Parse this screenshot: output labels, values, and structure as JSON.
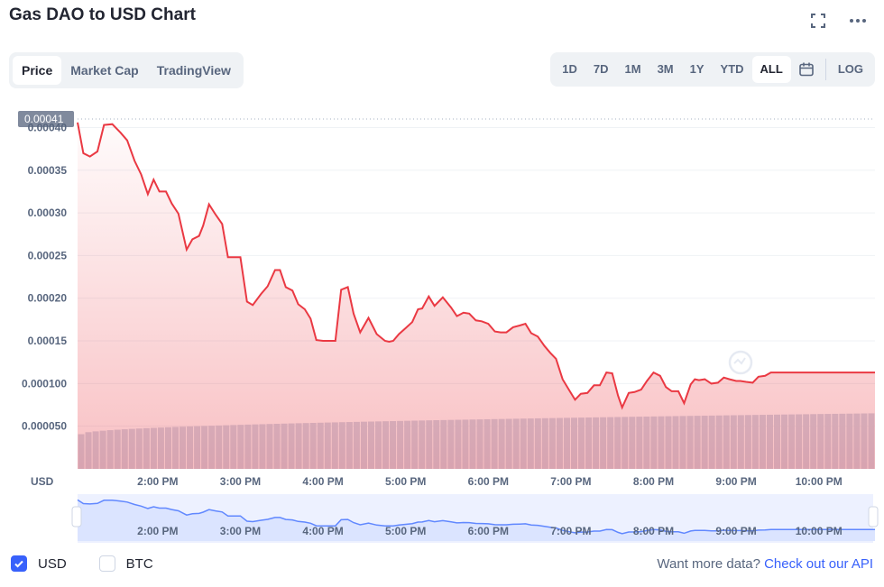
{
  "header": {
    "title": "Gas DAO to USD Chart"
  },
  "tabs": [
    {
      "label": "Price",
      "active": true
    },
    {
      "label": "Market Cap",
      "active": false
    },
    {
      "label": "TradingView",
      "active": false
    }
  ],
  "ranges": [
    {
      "label": "1D",
      "active": false
    },
    {
      "label": "7D",
      "active": false
    },
    {
      "label": "1M",
      "active": false
    },
    {
      "label": "3M",
      "active": false
    },
    {
      "label": "1Y",
      "active": false
    },
    {
      "label": "YTD",
      "active": false
    },
    {
      "label": "ALL",
      "active": true
    }
  ],
  "log_label": "LOG",
  "icons": {
    "fullscreen": "fullscreen-icon",
    "more": "more-icon",
    "calendar": "calendar-icon"
  },
  "colors": {
    "line": "#ea3943",
    "volume": "#cfd6e4",
    "navigator_line": "#6188ff",
    "accent": "#3861fb"
  },
  "chart_data": {
    "type": "line",
    "current_price_label": "0.00041",
    "y_unit": "USD",
    "y_ticks": [
      {
        "v": 5e-05,
        "label": "0.000050"
      },
      {
        "v": 0.0001,
        "label": "0.000100"
      },
      {
        "v": 0.00015,
        "label": "0.00015"
      },
      {
        "v": 0.0002,
        "label": "0.00020"
      },
      {
        "v": 0.00025,
        "label": "0.00025"
      },
      {
        "v": 0.0003,
        "label": "0.00030"
      },
      {
        "v": 0.00035,
        "label": "0.00035"
      },
      {
        "v": 0.0004,
        "label": "0.00040"
      }
    ],
    "ylim": [
      0,
      0.00041
    ],
    "x_ticks": [
      "2:00 PM",
      "3:00 PM",
      "4:00 PM",
      "5:00 PM",
      "6:00 PM",
      "7:00 PM",
      "8:00 PM",
      "9:00 PM",
      "10:00 PM"
    ],
    "x_tick_hours": [
      14,
      15,
      16,
      17,
      18,
      19,
      20,
      21,
      22
    ],
    "xlim_hours": [
      13.03,
      22.68
    ],
    "series": [
      {
        "x": [
          13.03,
          13.1,
          13.18,
          13.27,
          13.35,
          13.45,
          13.55,
          13.63,
          13.72,
          13.8,
          13.88,
          13.95,
          14.02,
          14.1,
          14.17,
          14.25,
          14.35,
          14.42,
          14.5,
          14.55,
          14.62,
          14.7,
          14.78,
          14.85,
          14.92,
          15.0,
          15.08,
          15.15,
          15.25,
          15.33,
          15.42,
          15.48,
          15.55,
          15.63,
          15.7,
          15.78,
          15.85,
          15.92,
          16.0,
          16.08,
          16.15,
          16.22,
          16.3,
          16.37,
          16.45,
          16.55,
          16.65,
          16.75,
          16.8,
          16.85,
          16.92,
          17.0,
          17.08,
          17.15,
          17.2,
          17.28,
          17.35,
          17.45,
          17.55,
          17.62,
          17.7,
          17.77,
          17.85,
          17.92,
          18.0,
          18.08,
          18.15,
          18.22,
          18.3,
          18.38,
          18.45,
          18.52,
          18.6,
          18.68,
          18.75,
          18.82,
          18.9,
          18.98,
          19.05,
          19.12,
          19.2,
          19.28,
          19.35,
          19.43,
          19.5,
          19.57,
          19.62,
          19.7,
          19.77,
          19.85,
          19.92,
          20.0,
          20.08,
          20.15,
          20.22,
          20.3,
          20.37,
          20.45,
          20.5,
          20.55,
          20.62,
          20.7,
          20.78,
          20.85,
          20.92,
          21.0,
          21.05,
          21.12,
          21.2,
          21.27,
          21.35,
          21.42,
          21.48,
          21.55,
          21.62,
          21.7,
          21.77,
          21.85,
          21.92,
          22.0,
          22.08,
          22.15,
          22.22,
          22.3,
          22.38,
          22.45,
          22.52,
          22.6,
          22.68
        ],
        "y": [
          0.000406,
          0.00037,
          0.000366,
          0.000372,
          0.000403,
          0.000404,
          0.000394,
          0.000385,
          0.000361,
          0.000345,
          0.000322,
          0.000339,
          0.000325,
          0.000325,
          0.000311,
          0.000299,
          0.000257,
          0.000269,
          0.000273,
          0.000285,
          0.00031,
          0.000298,
          0.000287,
          0.000248,
          0.000248,
          0.000248,
          0.000196,
          0.000192,
          0.000205,
          0.000214,
          0.000233,
          0.000233,
          0.000213,
          0.000209,
          0.000193,
          0.000187,
          0.000176,
          0.000151,
          0.00015,
          0.00015,
          0.00015,
          0.00021,
          0.000213,
          0.000182,
          0.00016,
          0.000177,
          0.000158,
          0.00015,
          0.000149,
          0.00015,
          0.000158,
          0.000165,
          0.000172,
          0.000187,
          0.000188,
          0.000202,
          0.000191,
          0.000201,
          0.000189,
          0.000179,
          0.000183,
          0.000182,
          0.000174,
          0.000173,
          0.00017,
          0.000161,
          0.00016,
          0.00016,
          0.000166,
          0.000168,
          0.00017,
          0.000159,
          0.000155,
          0.000144,
          0.000136,
          0.000129,
          0.000105,
          9.2e-05,
          8.1e-05,
          8.8e-05,
          8.9e-05,
          9.8e-05,
          9.8e-05,
          0.000113,
          0.000112,
          8.6e-05,
          7.2e-05,
          8.9e-05,
          9e-05,
          9.3e-05,
          0.000103,
          0.000113,
          0.000109,
          9.6e-05,
          9.1e-05,
          9.1e-05,
          7.7e-05,
          9.9e-05,
          0.000105,
          0.000104,
          0.000105,
          0.0001,
          0.000101,
          0.000107,
          0.000105,
          0.000103,
          0.000103,
          0.000102,
          0.000101,
          0.000108,
          0.000109,
          0.000113,
          0.000113,
          0.000113,
          0.000113,
          0.000113,
          0.000113,
          0.000113,
          0.000113,
          0.000113,
          0.000113,
          0.000113,
          0.000113,
          0.000113,
          0.000113,
          0.000113,
          0.000113,
          0.000113,
          0.000113
        ]
      }
    ],
    "volume_level_range": [
      0.55,
      0.88
    ],
    "grid": true,
    "navigator": true
  },
  "legend": {
    "usd": {
      "label": "USD",
      "checked": true
    },
    "btc": {
      "label": "BTC",
      "checked": false
    }
  },
  "footer": {
    "prefix": "Want more data?",
    "link": "Check out our API"
  }
}
